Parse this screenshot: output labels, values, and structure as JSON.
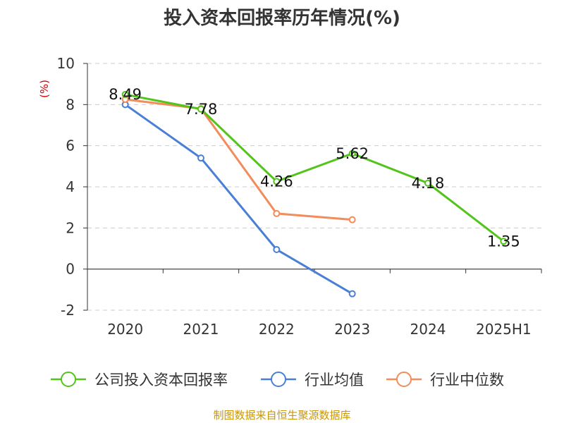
{
  "chart_data": {
    "type": "line",
    "title": "投入资本回报率历年情况(%)",
    "y_unit_label": "(%)",
    "categories": [
      "2020",
      "2021",
      "2022",
      "2023",
      "2024",
      "2025H1"
    ],
    "ylim": [
      -2,
      10
    ],
    "yticks": [
      -2,
      0,
      2,
      4,
      6,
      8,
      10
    ],
    "grid": "horizontal dashed",
    "legend_position": "bottom",
    "series": [
      {
        "name": "公司投入资本回报率",
        "color": "#52c41a",
        "values": [
          8.49,
          7.78,
          4.26,
          5.62,
          4.18,
          1.35
        ],
        "labels": [
          "8.49",
          "7.78",
          "4.26",
          "5.62",
          "4.18",
          "1.35"
        ]
      },
      {
        "name": "行业均值",
        "color": "#4a7fd6",
        "values": [
          8.0,
          5.4,
          0.95,
          -1.2,
          null,
          null
        ]
      },
      {
        "name": "行业中位数",
        "color": "#f28c5a",
        "values": [
          8.25,
          7.8,
          2.7,
          2.4,
          null,
          null
        ]
      }
    ]
  },
  "source": "制图数据来自恒生聚源数据库"
}
